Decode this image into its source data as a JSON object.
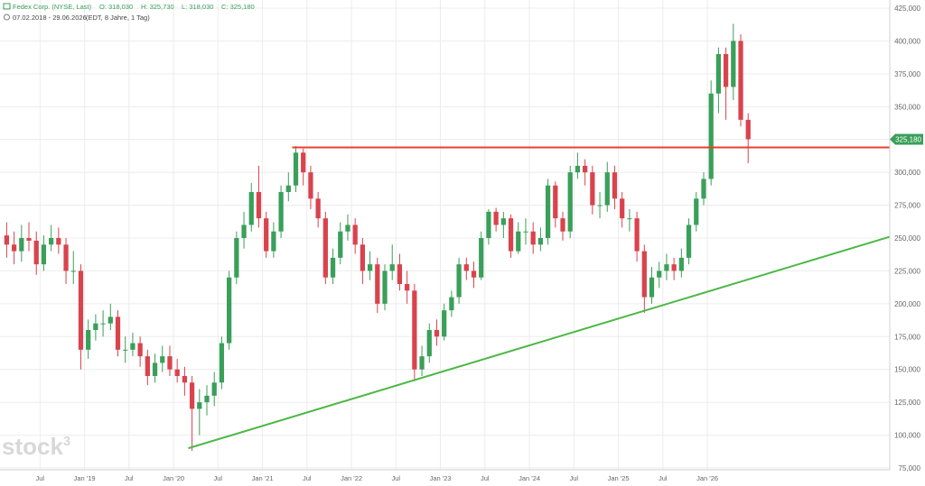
{
  "header": {
    "name": "Fedex Corp. (NYSE, Last)",
    "open": "O: 318,030",
    "high": "H: 325,730",
    "low": "L: 318,030",
    "close": "C: 325,180",
    "range": "07.02.2018 - 29.06.2026",
    "info": "(EDT, 8 Jahre, 1 Tag)"
  },
  "watermark": {
    "text": "stock",
    "sup": "3"
  },
  "chart_data": {
    "type": "candlestick",
    "grid": true,
    "up_color": "#3a9f5a",
    "down_color": "#d9434d",
    "x": [
      "2018-02",
      "2018-03",
      "2018-04",
      "2018-05",
      "2018-06",
      "2018-07",
      "2018-08",
      "2018-09",
      "2018-10",
      "2018-11",
      "2018-12",
      "2019-01",
      "2019-02",
      "2019-03",
      "2019-04",
      "2019-05",
      "2019-06",
      "2019-07",
      "2019-08",
      "2019-09",
      "2019-10",
      "2019-11",
      "2019-12",
      "2020-01",
      "2020-02",
      "2020-03",
      "2020-04",
      "2020-05",
      "2020-06",
      "2020-07",
      "2020-08",
      "2020-09",
      "2020-10",
      "2020-11",
      "2020-12",
      "2021-01",
      "2021-02",
      "2021-03",
      "2021-04",
      "2021-05",
      "2021-06",
      "2021-07",
      "2021-08",
      "2021-09",
      "2021-10",
      "2021-11",
      "2021-12",
      "2022-01",
      "2022-02",
      "2022-03",
      "2022-04",
      "2022-05",
      "2022-06",
      "2022-07",
      "2022-08",
      "2022-09",
      "2022-10",
      "2022-11",
      "2022-12",
      "2023-01",
      "2023-02",
      "2023-03",
      "2023-04",
      "2023-05",
      "2023-06",
      "2023-07",
      "2023-08",
      "2023-09",
      "2023-10",
      "2023-11",
      "2023-12",
      "2024-01",
      "2024-02",
      "2024-03",
      "2024-04",
      "2024-05",
      "2024-06",
      "2024-07",
      "2024-08",
      "2024-09",
      "2024-10",
      "2024-11",
      "2024-12",
      "2025-01",
      "2025-02",
      "2025-03",
      "2025-04",
      "2025-05",
      "2025-06",
      "2025-07",
      "2025-08",
      "2025-09",
      "2025-10",
      "2025-11",
      "2025-12",
      "2026-01",
      "2026-02",
      "2026-03",
      "2026-04",
      "2026-05",
      "2026-06"
    ],
    "open": [
      252,
      245,
      240,
      250,
      248,
      230,
      245,
      250,
      245,
      225,
      225,
      165,
      180,
      185,
      185,
      190,
      165,
      165,
      170,
      160,
      145,
      155,
      160,
      150,
      145,
      140,
      120,
      125,
      130,
      140,
      170,
      220,
      250,
      260,
      285,
      265,
      240,
      255,
      285,
      290,
      315,
      300,
      280,
      265,
      220,
      235,
      255,
      260,
      245,
      225,
      230,
      200,
      225,
      230,
      215,
      210,
      150,
      160,
      180,
      175,
      195,
      205,
      230,
      225,
      220,
      250,
      270,
      260,
      265,
      240,
      255,
      255,
      245,
      250,
      290,
      265,
      255,
      300,
      305,
      300,
      275,
      275,
      300,
      280,
      265,
      265,
      240,
      205,
      220,
      225,
      230,
      225,
      235,
      260,
      280,
      295,
      360,
      390,
      365,
      400,
      340
    ],
    "high": [
      262,
      255,
      260,
      262,
      255,
      252,
      260,
      258,
      250,
      240,
      230,
      188,
      192,
      195,
      200,
      195,
      175,
      178,
      175,
      165,
      162,
      168,
      168,
      158,
      152,
      145,
      135,
      138,
      148,
      175,
      225,
      255,
      270,
      292,
      305,
      270,
      262,
      290,
      300,
      320,
      318,
      305,
      285,
      270,
      242,
      262,
      268,
      265,
      250,
      240,
      235,
      230,
      245,
      238,
      225,
      215,
      168,
      185,
      188,
      200,
      210,
      235,
      235,
      232,
      255,
      272,
      273,
      270,
      268,
      262,
      265,
      262,
      258,
      295,
      293,
      270,
      305,
      315,
      310,
      305,
      285,
      308,
      305,
      285,
      272,
      270,
      245,
      228,
      232,
      238,
      235,
      242,
      265,
      285,
      300,
      370,
      395,
      395,
      413,
      405,
      345
    ],
    "low": [
      235,
      230,
      232,
      240,
      222,
      225,
      240,
      238,
      215,
      215,
      150,
      158,
      172,
      175,
      180,
      160,
      155,
      160,
      152,
      138,
      140,
      148,
      145,
      140,
      130,
      88,
      100,
      115,
      122,
      135,
      165,
      215,
      242,
      255,
      258,
      235,
      235,
      250,
      278,
      285,
      290,
      272,
      258,
      215,
      215,
      230,
      248,
      238,
      215,
      218,
      193,
      195,
      218,
      210,
      200,
      141,
      145,
      155,
      168,
      172,
      190,
      200,
      218,
      212,
      218,
      245,
      255,
      250,
      235,
      238,
      245,
      238,
      240,
      245,
      258,
      248,
      250,
      295,
      290,
      268,
      265,
      270,
      272,
      258,
      255,
      232,
      193,
      200,
      212,
      218,
      218,
      220,
      230,
      255,
      275,
      290,
      345,
      340,
      355,
      335,
      307
    ],
    "close": [
      245,
      240,
      250,
      248,
      230,
      245,
      250,
      245,
      225,
      225,
      165,
      180,
      185,
      185,
      190,
      165,
      165,
      170,
      160,
      145,
      155,
      160,
      150,
      145,
      140,
      120,
      125,
      130,
      140,
      170,
      220,
      250,
      260,
      285,
      265,
      240,
      255,
      285,
      290,
      315,
      300,
      280,
      265,
      220,
      235,
      255,
      260,
      245,
      225,
      230,
      200,
      225,
      230,
      215,
      210,
      150,
      160,
      180,
      175,
      195,
      205,
      230,
      225,
      220,
      250,
      270,
      260,
      265,
      240,
      255,
      255,
      245,
      250,
      290,
      265,
      255,
      300,
      305,
      300,
      275,
      275,
      300,
      280,
      265,
      265,
      240,
      205,
      220,
      225,
      230,
      225,
      235,
      260,
      280,
      295,
      360,
      390,
      365,
      400,
      340,
      325.18
    ],
    "xlim": [
      "2018-02",
      "2028-02"
    ],
    "xticks": [
      {
        "value": "2018-07",
        "label": "Jul"
      },
      {
        "value": "2019-01",
        "label": "Jan '19"
      },
      {
        "value": "2019-07",
        "label": "Jul"
      },
      {
        "value": "2020-01",
        "label": "Jan '20"
      },
      {
        "value": "2020-07",
        "label": "Jul"
      },
      {
        "value": "2021-01",
        "label": "Jan '21"
      },
      {
        "value": "2021-07",
        "label": "Jul"
      },
      {
        "value": "2022-01",
        "label": "Jan '22"
      },
      {
        "value": "2022-07",
        "label": "Jul"
      },
      {
        "value": "2023-01",
        "label": "Jan '23"
      },
      {
        "value": "2023-07",
        "label": "Jul"
      },
      {
        "value": "2024-01",
        "label": "Jan '24"
      },
      {
        "value": "2024-07",
        "label": "Jul"
      },
      {
        "value": "2025-01",
        "label": "Jan '25"
      },
      {
        "value": "2025-07",
        "label": "Jul"
      },
      {
        "value": "2026-01",
        "label": "Jan '26"
      }
    ],
    "ylim": [
      75,
      425
    ],
    "yticks": [
      {
        "value": 75,
        "label": "75,000"
      },
      {
        "value": 100,
        "label": "100,000"
      },
      {
        "value": 125,
        "label": "125,000"
      },
      {
        "value": 150,
        "label": "150,000"
      },
      {
        "value": 175,
        "label": "175,000"
      },
      {
        "value": 200,
        "label": "200,000"
      },
      {
        "value": 225,
        "label": "225,000"
      },
      {
        "value": 250,
        "label": "250,000"
      },
      {
        "value": 275,
        "label": "275,000"
      },
      {
        "value": 300,
        "label": "300,000"
      },
      {
        "value": 325,
        "label": "325,000"
      },
      {
        "value": 350,
        "label": "350,000"
      },
      {
        "value": 375,
        "label": "375,000"
      },
      {
        "value": 400,
        "label": "400,000"
      },
      {
        "value": 425,
        "label": "425,000"
      }
    ],
    "last_price": {
      "value": 325.18,
      "label": "325,180",
      "color": "#3a9f5a"
    },
    "lines": [
      {
        "x": [
          "2021-05",
          "2028-02"
        ],
        "y": [
          319,
          319
        ],
        "color": "#e8412c"
      },
      {
        "x": [
          "2020-03",
          "2028-02"
        ],
        "y": [
          90,
          251
        ],
        "color": "#4cb845"
      }
    ]
  }
}
